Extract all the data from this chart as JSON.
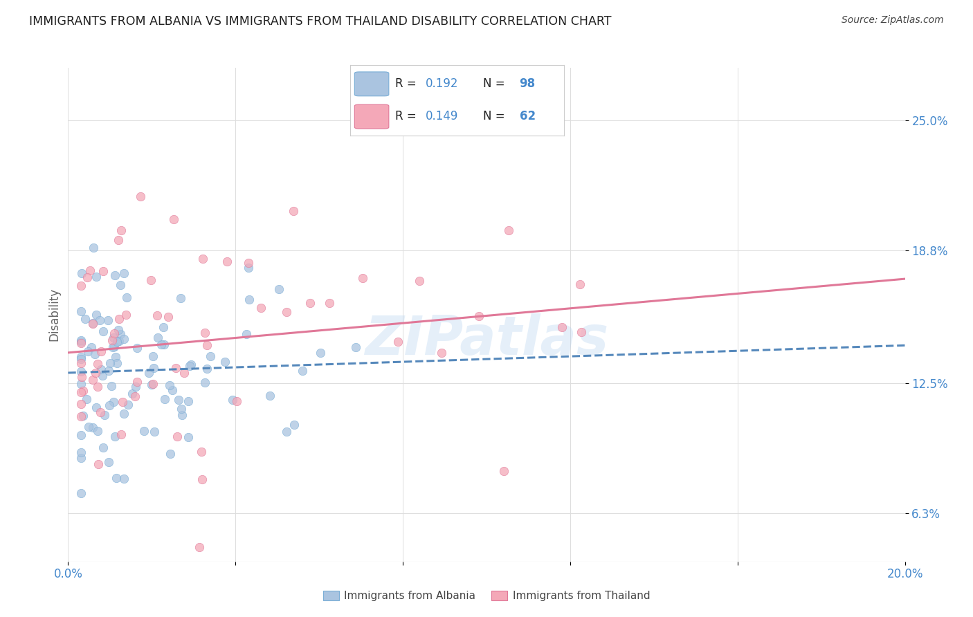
{
  "title": "IMMIGRANTS FROM ALBANIA VS IMMIGRANTS FROM THAILAND DISABILITY CORRELATION CHART",
  "source": "Source: ZipAtlas.com",
  "ylabel": "Disability",
  "ytick_labels": [
    "6.3%",
    "12.5%",
    "18.8%",
    "25.0%"
  ],
  "ytick_values": [
    0.063,
    0.125,
    0.188,
    0.25
  ],
  "xlim": [
    0.0,
    0.2
  ],
  "ylim": [
    0.04,
    0.275
  ],
  "albania_color": "#aac4e0",
  "albania_edge": "#7aaed6",
  "thailand_color": "#f4a8b8",
  "thailand_edge": "#e07898",
  "trendline1_color": "#5588bb",
  "trendline2_color": "#e07898",
  "background_color": "#ffffff",
  "grid_color": "#dddddd",
  "title_color": "#222222",
  "source_color": "#444444",
  "tick_color": "#4488cc",
  "watermark": "ZIPatlas",
  "marker_size": 80,
  "marker_alpha": 0.75,
  "legend_r1": "0.192",
  "legend_n1": "98",
  "legend_r2": "0.149",
  "legend_n2": "62"
}
